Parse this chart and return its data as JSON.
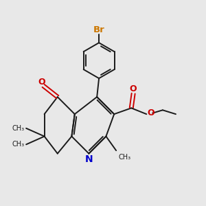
{
  "bg_color": "#e8e8e8",
  "bond_color": "#1a1a1a",
  "bond_width": 1.4,
  "n_color": "#0000cc",
  "o_color": "#cc0000",
  "br_color": "#cc7700",
  "figsize": [
    3.0,
    3.0
  ],
  "dpi": 100,
  "xlim": [
    0,
    10
  ],
  "ylim": [
    0,
    10
  ]
}
